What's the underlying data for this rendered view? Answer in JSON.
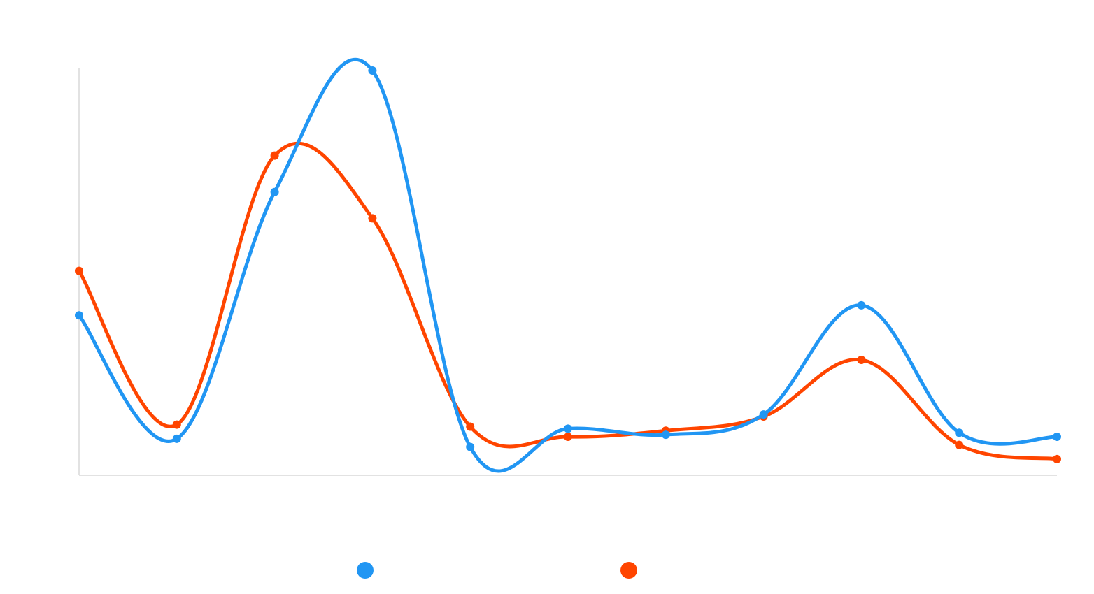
{
  "chart_data": {
    "type": "line",
    "smooth": true,
    "x": [
      1,
      2,
      3,
      4,
      5,
      6,
      7,
      8,
      9,
      10,
      11
    ],
    "ylim": [
      0,
      100
    ],
    "grid": false,
    "legend_position": "bottom-center",
    "series": [
      {
        "name": "",
        "color": "#2196F3",
        "values": [
          39.5,
          9,
          70,
          100,
          7,
          11.5,
          10,
          15,
          42,
          10.5,
          9.5
        ]
      },
      {
        "name": "",
        "color": "#FF4500",
        "values": [
          50.5,
          12.5,
          79,
          63.5,
          12,
          9.5,
          11,
          14.5,
          28.5,
          7.5,
          4
        ]
      }
    ]
  }
}
